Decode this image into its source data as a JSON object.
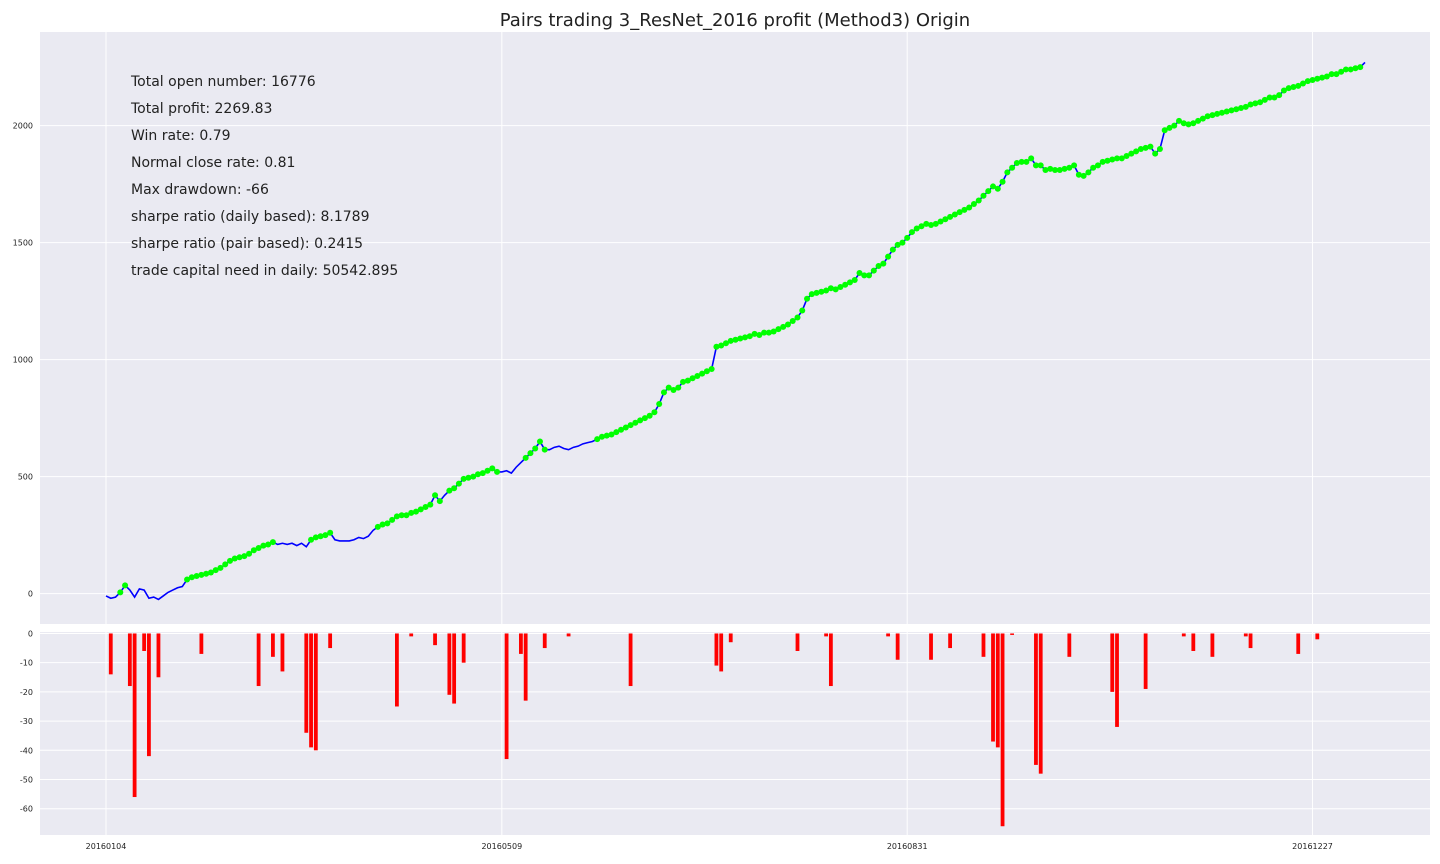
{
  "chart_data": [
    {
      "type": "line",
      "title": "Pairs trading 3_ResNet_2016 profit (Method3) Origin",
      "xlabel": "",
      "ylabel": "",
      "x_tick_labels": [
        "20160104",
        "20160509",
        "20160831",
        "20161227"
      ],
      "y_ticks": [
        0,
        500,
        1000,
        1500,
        2000
      ],
      "ylim": [
        -130,
        2400
      ],
      "grid": true,
      "colors": {
        "line": "#0000ff",
        "markers": "#00ff00",
        "background": "#eaeaf2",
        "grid": "#ffffff"
      },
      "stats": [
        "Total open number: 16776",
        "Total profit: 2269.83",
        "Win rate: 0.79",
        "Normal close rate: 0.81",
        "Max drawdown: -66",
        "sharpe ratio (daily based): 8.1789",
        "sharpe ratio (pair based): 0.2415",
        "trade capital need in daily: 50542.895"
      ],
      "series": [
        {
          "values": [
            -10,
            -20,
            -15,
            5,
            35,
            15,
            -15,
            20,
            15,
            -20,
            -15,
            -25,
            -10,
            5,
            15,
            25,
            30,
            60,
            70,
            75,
            80,
            85,
            90,
            100,
            110,
            125,
            140,
            150,
            155,
            160,
            170,
            185,
            195,
            205,
            210,
            220,
            210,
            215,
            210,
            215,
            205,
            215,
            200,
            230,
            240,
            245,
            250,
            260,
            230,
            225,
            225,
            225,
            230,
            240,
            235,
            245,
            270,
            285,
            295,
            300,
            315,
            330,
            335,
            335,
            345,
            350,
            360,
            370,
            380,
            420,
            395,
            420,
            440,
            450,
            470,
            490,
            495,
            500,
            510,
            515,
            525,
            535,
            520,
            520,
            525,
            515,
            540,
            560,
            580,
            600,
            620,
            650,
            615,
            615,
            625,
            630,
            620,
            615,
            625,
            630,
            640,
            645,
            650,
            660,
            670,
            675,
            680,
            690,
            700,
            710,
            720,
            730,
            740,
            750,
            760,
            775,
            810,
            860,
            880,
            870,
            880,
            905,
            910,
            920,
            930,
            940,
            950,
            960,
            1055,
            1060,
            1070,
            1080,
            1085,
            1090,
            1095,
            1100,
            1110,
            1105,
            1115,
            1115,
            1120,
            1130,
            1140,
            1150,
            1165,
            1180,
            1210,
            1260,
            1280,
            1285,
            1290,
            1295,
            1305,
            1300,
            1310,
            1320,
            1330,
            1340,
            1370,
            1360,
            1360,
            1380,
            1400,
            1410,
            1440,
            1470,
            1490,
            1500,
            1520,
            1545,
            1560,
            1570,
            1580,
            1575,
            1580,
            1590,
            1600,
            1610,
            1620,
            1630,
            1640,
            1650,
            1665,
            1680,
            1700,
            1720,
            1740,
            1730,
            1760,
            1800,
            1820,
            1840,
            1845,
            1845,
            1860,
            1830,
            1830,
            1810,
            1815,
            1810,
            1810,
            1815,
            1820,
            1830,
            1790,
            1785,
            1800,
            1820,
            1830,
            1845,
            1850,
            1855,
            1860,
            1860,
            1870,
            1880,
            1890,
            1900,
            1905,
            1910,
            1880,
            1900,
            1980,
            1990,
            2000,
            2020,
            2010,
            2005,
            2010,
            2020,
            2030,
            2040,
            2045,
            2050,
            2055,
            2060,
            2065,
            2070,
            2075,
            2080,
            2090,
            2095,
            2100,
            2110,
            2120,
            2120,
            2130,
            2150,
            2160,
            2165,
            2170,
            2180,
            2190,
            2195,
            2200,
            2205,
            2210,
            2220,
            2220,
            2230,
            2240,
            2240,
            2245,
            2250,
            2269.83
          ],
          "win_indices": [
            3,
            4,
            17,
            18,
            19,
            20,
            21,
            22,
            23,
            24,
            25,
            26,
            27,
            28,
            29,
            30,
            31,
            32,
            33,
            34,
            35,
            43,
            44,
            45,
            46,
            47,
            57,
            58,
            59,
            60,
            61,
            62,
            63,
            64,
            65,
            66,
            67,
            68,
            69,
            70,
            72,
            73,
            74,
            75,
            76,
            77,
            78,
            79,
            80,
            81,
            82,
            88,
            89,
            90,
            91,
            92,
            103,
            104,
            105,
            106,
            107,
            108,
            109,
            110,
            111,
            112,
            113,
            114,
            115,
            116,
            117,
            118,
            119,
            120,
            121,
            122,
            123,
            124,
            125,
            126,
            127,
            128,
            129,
            130,
            131,
            132,
            133,
            134,
            135,
            136,
            137,
            138,
            139,
            140,
            141,
            142,
            143,
            144,
            145,
            146,
            147,
            148,
            149,
            150,
            151,
            152,
            153,
            154,
            155,
            156,
            157,
            158,
            159,
            160,
            161,
            162,
            163,
            164,
            165,
            166,
            167,
            168,
            169,
            170,
            171,
            172,
            173,
            174,
            175,
            176,
            177,
            178,
            179,
            180,
            181,
            182,
            183,
            184,
            185,
            186,
            187,
            188,
            189,
            190,
            191,
            192,
            193,
            194,
            195,
            196,
            197,
            198,
            199,
            200,
            201,
            202,
            203,
            204,
            205,
            206,
            207,
            208,
            209,
            210,
            211,
            212,
            213,
            214,
            215,
            216,
            217,
            218,
            219,
            220,
            221,
            222,
            223,
            224,
            225,
            226,
            227,
            228,
            229,
            230,
            231,
            232,
            233,
            234,
            235,
            236,
            237,
            238,
            239,
            240,
            241,
            242,
            243,
            244,
            245,
            246,
            247,
            248,
            249,
            250,
            251,
            252,
            253,
            254,
            255,
            256,
            257,
            258,
            259,
            260,
            261,
            262,
            263
          ]
        }
      ]
    },
    {
      "type": "bar",
      "title": "",
      "xlabel": "",
      "ylabel": "",
      "y_ticks": [
        0,
        -10,
        -20,
        -30,
        -40,
        -50,
        -60
      ],
      "ylim": [
        -69,
        0.5
      ],
      "grid": true,
      "colors": {
        "bar": "#ff0000",
        "background": "#eaeaf2",
        "grid": "#ffffff"
      },
      "bars": [
        {
          "i": 1,
          "v": -14
        },
        {
          "i": 5,
          "v": -18
        },
        {
          "i": 6,
          "v": -56
        },
        {
          "i": 8,
          "v": -6
        },
        {
          "i": 9,
          "v": -42
        },
        {
          "i": 11,
          "v": -15
        },
        {
          "i": 20,
          "v": -7
        },
        {
          "i": 32,
          "v": -18
        },
        {
          "i": 35,
          "v": -8
        },
        {
          "i": 37,
          "v": -13
        },
        {
          "i": 42,
          "v": -34
        },
        {
          "i": 43,
          "v": -39
        },
        {
          "i": 44,
          "v": -40
        },
        {
          "i": 47,
          "v": -5
        },
        {
          "i": 61,
          "v": -25
        },
        {
          "i": 64,
          "v": -1
        },
        {
          "i": 69,
          "v": -4
        },
        {
          "i": 72,
          "v": -21
        },
        {
          "i": 73,
          "v": -24
        },
        {
          "i": 75,
          "v": -10
        },
        {
          "i": 84,
          "v": -43
        },
        {
          "i": 87,
          "v": -7
        },
        {
          "i": 88,
          "v": -23
        },
        {
          "i": 92,
          "v": -5
        },
        {
          "i": 97,
          "v": -1
        },
        {
          "i": 110,
          "v": -18
        },
        {
          "i": 128,
          "v": -11
        },
        {
          "i": 129,
          "v": -13
        },
        {
          "i": 131,
          "v": -3
        },
        {
          "i": 145,
          "v": -6
        },
        {
          "i": 151,
          "v": -1
        },
        {
          "i": 152,
          "v": -18
        },
        {
          "i": 164,
          "v": -1
        },
        {
          "i": 166,
          "v": -9
        },
        {
          "i": 173,
          "v": -9
        },
        {
          "i": 177,
          "v": -5
        },
        {
          "i": 184,
          "v": -8
        },
        {
          "i": 186,
          "v": -37
        },
        {
          "i": 187,
          "v": -39
        },
        {
          "i": 188,
          "v": -66
        },
        {
          "i": 190,
          "v": -0.5
        },
        {
          "i": 195,
          "v": -45
        },
        {
          "i": 196,
          "v": -48
        },
        {
          "i": 202,
          "v": -8
        },
        {
          "i": 211,
          "v": -20
        },
        {
          "i": 212,
          "v": -32
        },
        {
          "i": 218,
          "v": -19
        },
        {
          "i": 226,
          "v": -1
        },
        {
          "i": 228,
          "v": -6
        },
        {
          "i": 232,
          "v": -8
        },
        {
          "i": 239,
          "v": -1
        },
        {
          "i": 240,
          "v": -5
        },
        {
          "i": 250,
          "v": -7
        },
        {
          "i": 254,
          "v": -2
        }
      ]
    }
  ]
}
